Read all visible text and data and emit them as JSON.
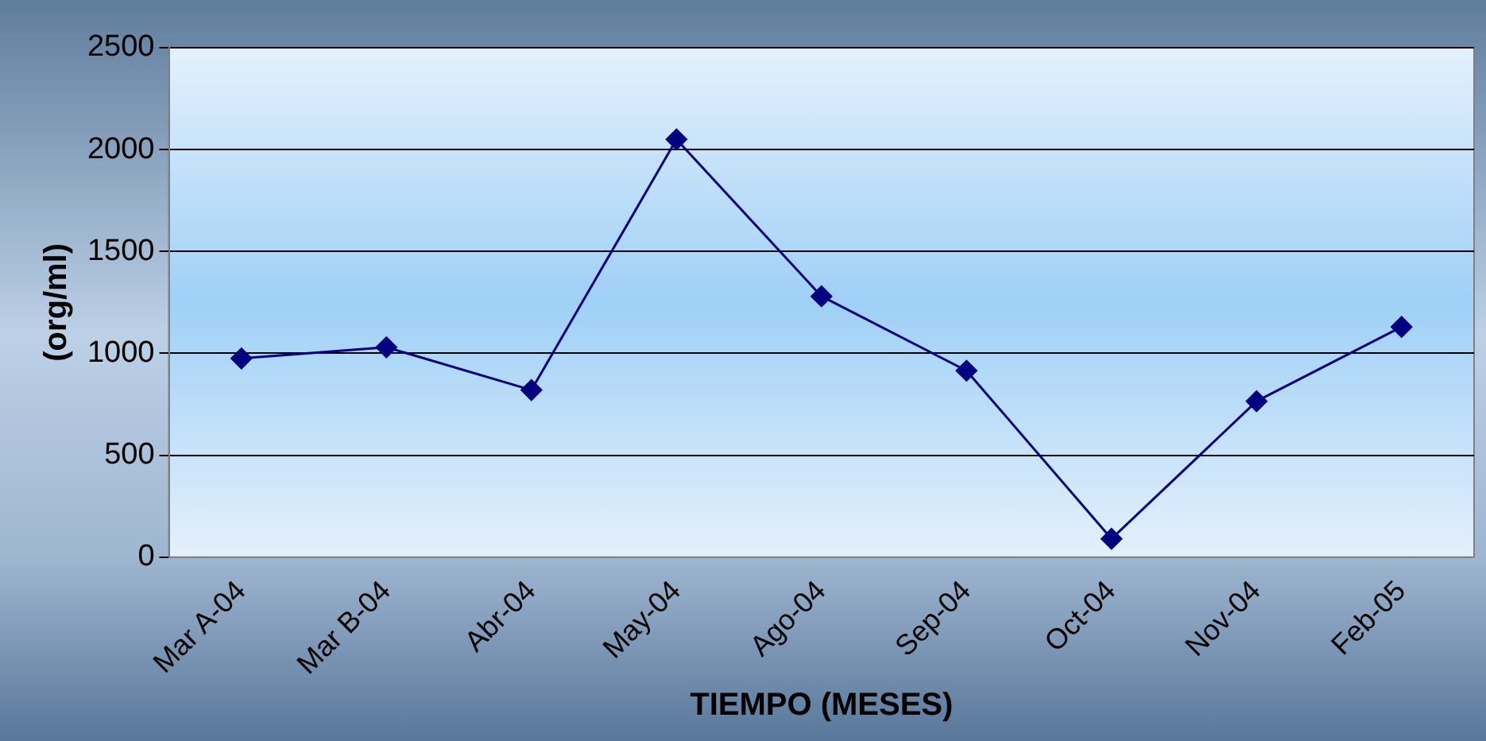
{
  "chart_data": {
    "type": "line",
    "xlabel": "TIEMPO (MESES)",
    "ylabel": "(org/ml)",
    "categories": [
      "Mar A-04",
      "Mar B-04",
      "Abr-04",
      "May-04",
      "Ago-04",
      "Sep-04",
      "Oct-04",
      "Nov-04",
      "Feb-05"
    ],
    "series": [
      {
        "color": "#000080",
        "values": [
          975,
          1030,
          820,
          2050,
          1280,
          915,
          90,
          765,
          1130
        ]
      }
    ],
    "ylim": [
      0,
      2500
    ],
    "yticks": [
      0,
      500,
      1000,
      1500,
      2000,
      2500
    ],
    "grid": "y",
    "legend": false,
    "marker": "diamond",
    "line_style": "solid"
  }
}
